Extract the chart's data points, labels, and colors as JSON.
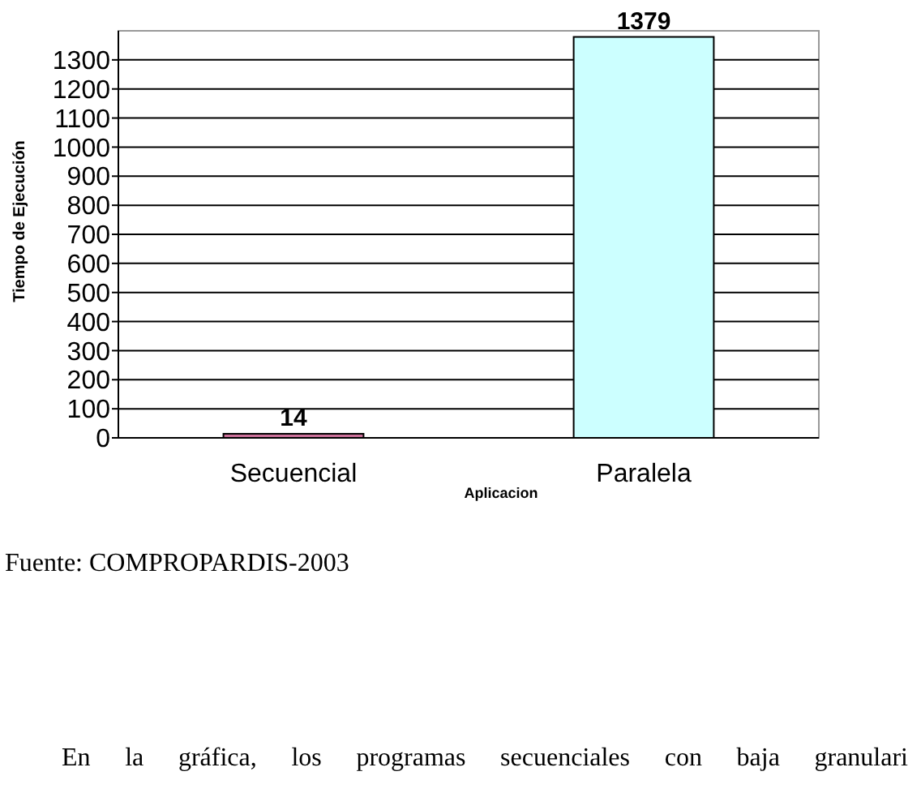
{
  "chart_data": {
    "type": "bar",
    "categories": [
      "Secuencial",
      "Paralela"
    ],
    "values": [
      14,
      1379
    ],
    "colors": [
      "#cc7099",
      "#ccffff"
    ],
    "xlabel": "Aplicacion",
    "ylabel": "Tiempo de Ejecución",
    "ylim": [
      0,
      1400
    ],
    "yticks": [
      0,
      100,
      200,
      300,
      400,
      500,
      600,
      700,
      800,
      900,
      1000,
      1100,
      1200,
      1300
    ],
    "grid": "y",
    "data_labels": true,
    "annotations": [
      "Fuente: COMPROPARDIS-2003",
      "En la gráfica, los programas secuenciales con baja granulari"
    ]
  }
}
